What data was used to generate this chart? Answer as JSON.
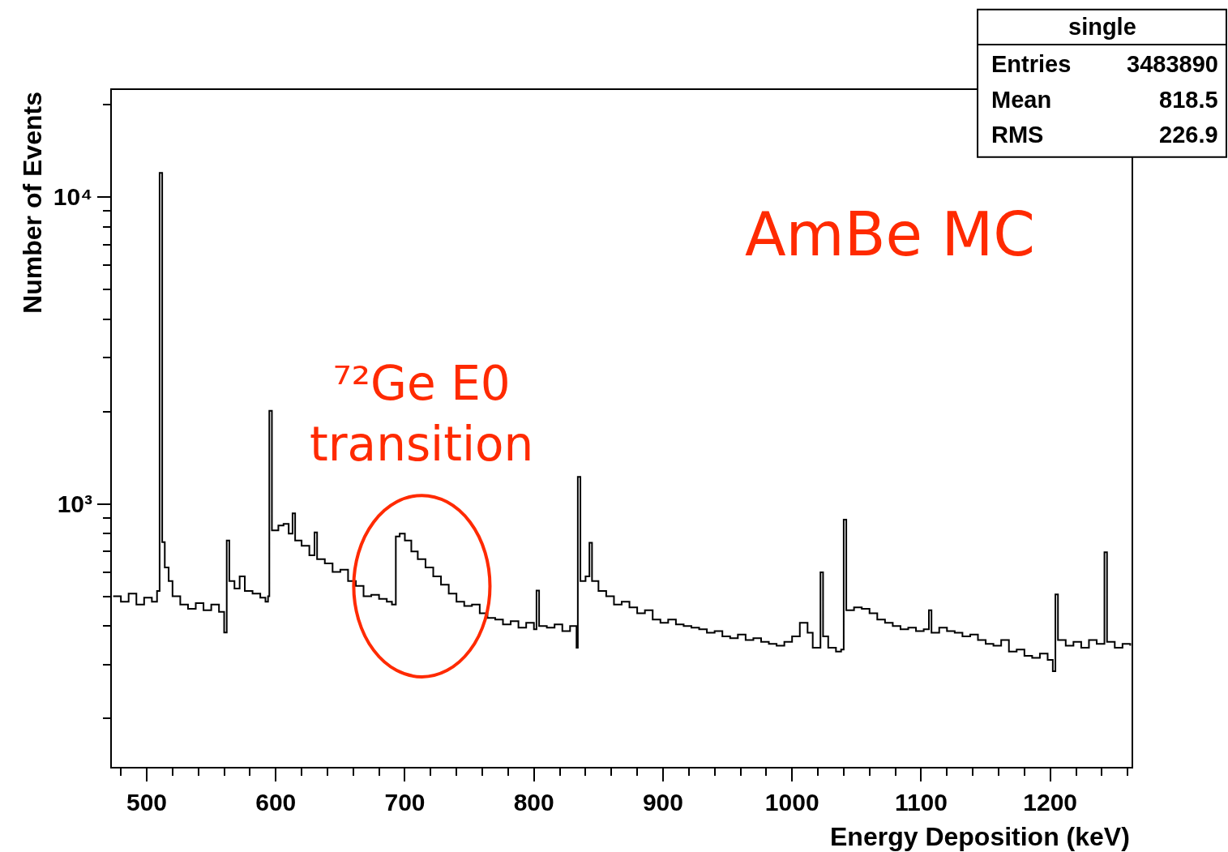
{
  "chart_data": {
    "type": "step",
    "xlabel": "Energy Deposition (keV)",
    "ylabel": "Number of Events",
    "log": "y",
    "grid": false,
    "xlim": [
      473,
      1263
    ],
    "xticks": [
      {
        "value": 480,
        "label": null
      },
      500,
      {
        "value": 520,
        "label": null
      },
      {
        "value": 540,
        "label": null
      },
      {
        "value": 560,
        "label": null
      },
      {
        "value": 580,
        "label": null
      },
      600,
      {
        "value": 620,
        "label": null
      },
      {
        "value": 640,
        "label": null
      },
      {
        "value": 660,
        "label": null
      },
      {
        "value": 680,
        "label": null
      },
      700,
      {
        "value": 720,
        "label": null
      },
      {
        "value": 740,
        "label": null
      },
      {
        "value": 760,
        "label": null
      },
      {
        "value": 780,
        "label": null
      },
      800,
      {
        "value": 820,
        "label": null
      },
      {
        "value": 840,
        "label": null
      },
      {
        "value": 860,
        "label": null
      },
      {
        "value": 880,
        "label": null
      },
      900,
      {
        "value": 920,
        "label": null
      },
      {
        "value": 940,
        "label": null
      },
      {
        "value": 960,
        "label": null
      },
      {
        "value": 980,
        "label": null
      },
      1000,
      {
        "value": 1020,
        "label": null
      },
      {
        "value": 1040,
        "label": null
      },
      {
        "value": 1060,
        "label": null
      },
      {
        "value": 1080,
        "label": null
      },
      1100,
      {
        "value": 1120,
        "label": null
      },
      {
        "value": 1140,
        "label": null
      },
      {
        "value": 1160,
        "label": null
      },
      {
        "value": 1180,
        "label": null
      },
      1200,
      {
        "value": 1220,
        "label": null
      },
      {
        "value": 1240,
        "label": null
      },
      {
        "value": 1260,
        "label": null
      }
    ],
    "ylim": [
      139,
      22300
    ],
    "yticks": [
      {
        "value": 200,
        "label": null
      },
      {
        "value": 300,
        "label": null
      },
      {
        "value": 400,
        "label": null
      },
      {
        "value": 500,
        "label": null
      },
      {
        "value": 600,
        "label": null
      },
      {
        "value": 700,
        "label": null
      },
      {
        "value": 800,
        "label": null
      },
      {
        "value": 900,
        "label": null
      },
      {
        "value": 1000,
        "label": "10³"
      },
      {
        "value": 2000,
        "label": null
      },
      {
        "value": 3000,
        "label": null
      },
      {
        "value": 4000,
        "label": null
      },
      {
        "value": 5000,
        "label": null
      },
      {
        "value": 6000,
        "label": null
      },
      {
        "value": 7000,
        "label": null
      },
      {
        "value": 8000,
        "label": null
      },
      {
        "value": 9000,
        "label": null
      },
      {
        "value": 10000,
        "label": "10⁴"
      },
      {
        "value": 20000,
        "label": null
      }
    ],
    "x": [
      474,
      480,
      486,
      492,
      498,
      504,
      508,
      510,
      512,
      514,
      517,
      520,
      526,
      532,
      538,
      544,
      550,
      556,
      560,
      562,
      564,
      568,
      572,
      576,
      582,
      588,
      592,
      594,
      595,
      597,
      602,
      606,
      610,
      613,
      615,
      620,
      626,
      630,
      632,
      638,
      644,
      650,
      656,
      662,
      668,
      674,
      680,
      686,
      690,
      693,
      696,
      700,
      705,
      710,
      716,
      722,
      728,
      734,
      740,
      746,
      752,
      758,
      764,
      770,
      776,
      782,
      788,
      794,
      800,
      802,
      804,
      810,
      816,
      822,
      828,
      833,
      834,
      836,
      840,
      843,
      845,
      850,
      856,
      862,
      868,
      874,
      880,
      886,
      892,
      898,
      904,
      910,
      916,
      922,
      928,
      934,
      940,
      946,
      952,
      958,
      964,
      970,
      976,
      982,
      988,
      994,
      1000,
      1006,
      1012,
      1016,
      1022,
      1024,
      1028,
      1034,
      1038,
      1040,
      1042,
      1048,
      1054,
      1060,
      1066,
      1072,
      1078,
      1084,
      1090,
      1096,
      1102,
      1106,
      1108,
      1114,
      1120,
      1126,
      1132,
      1138,
      1144,
      1150,
      1156,
      1162,
      1168,
      1174,
      1180,
      1186,
      1192,
      1198,
      1202,
      1204,
      1206,
      1212,
      1218,
      1224,
      1230,
      1236,
      1242,
      1244,
      1250,
      1256,
      1262
    ],
    "series": [
      {
        "color": "#000000",
        "values": [
          500,
          480,
          510,
          470,
          495,
          480,
          520,
          11970,
          750,
          620,
          560,
          500,
          470,
          455,
          475,
          450,
          470,
          445,
          381,
          760,
          560,
          530,
          580,
          520,
          510,
          495,
          480,
          500,
          2010,
          820,
          850,
          860,
          800,
          931,
          760,
          730,
          680,
          807,
          660,
          640,
          600,
          610,
          560,
          540,
          500,
          505,
          490,
          480,
          470,
          783,
          800,
          760,
          700,
          660,
          620,
          580,
          545,
          510,
          480,
          465,
          470,
          440,
          425,
          420,
          405,
          415,
          395,
          410,
          390,
          522,
          400,
          395,
          405,
          385,
          400,
          340,
          1225,
          560,
          580,
          747,
          560,
          520,
          500,
          470,
          480,
          460,
          440,
          450,
          420,
          410,
          420,
          405,
          400,
          395,
          390,
          380,
          385,
          370,
          365,
          375,
          360,
          365,
          355,
          350,
          345,
          355,
          370,
          410,
          380,
          340,
          598,
          370,
          340,
          330,
          335,
          888,
          450,
          460,
          455,
          440,
          420,
          410,
          400,
          390,
          395,
          385,
          390,
          450,
          380,
          395,
          385,
          380,
          370,
          375,
          360,
          350,
          345,
          360,
          330,
          335,
          320,
          315,
          325,
          310,
          285,
          507,
          360,
          345,
          355,
          340,
          360,
          350,
          695,
          355,
          340,
          350,
          345
        ]
      }
    ],
    "annotations": [
      "AmBe MC",
      "⁷²Ge E0\ntransition",
      "single",
      "Entries",
      "3483890",
      "Mean",
      "818.5",
      "RMS",
      "226.9"
    ]
  }
}
